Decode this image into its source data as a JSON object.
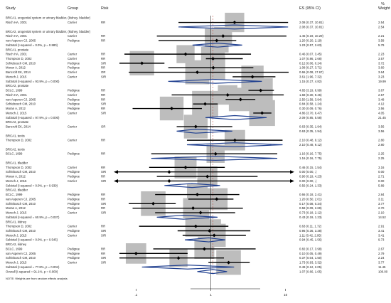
{
  "chart_data": {
    "type": "forest",
    "title": "",
    "columns": {
      "study": "Study",
      "group": "Group",
      "risk": "Risk",
      "es": "ES (95% CI)",
      "weight_line1": "%",
      "weight_line2": "Weight"
    },
    "xlabel": "",
    "log_scale": true,
    "axis_ticks": [
      {
        "value": 0.1,
        "label": ".1"
      },
      {
        "value": 1,
        "label": "1"
      },
      {
        "value": 10,
        "label": "10"
      }
    ],
    "xlim": [
      0.06,
      11
    ],
    "reference_line": 1,
    "footnote": "NOTE: Weights are from random effects analysis",
    "rows": [
      {
        "kind": "header",
        "label": "BRCA1, urogenital system or urinary bladder, (kidney, bladder)"
      },
      {
        "kind": "study",
        "label": "Risch HA, 2001",
        "group": "Carrier",
        "risk": "RR",
        "es": 2.08,
        "lo": 0.37,
        "hi": 10.81,
        "ci": "2.08 (0.37, 10.81)",
        "weight": "2.54"
      },
      {
        "kind": "subtotal",
        "label": "",
        "es": 2.08,
        "lo": 0.37,
        "hi": 10.81,
        "ci": "2.08 (0.37, 10.81)",
        "weight": "2.54"
      },
      {
        "kind": "header",
        "label": "BRCA2, urogenital system or urinary bladder, (kidney, bladder)"
      },
      {
        "kind": "study",
        "label": "Risch HA, 2001",
        "group": "Carrier",
        "risk": "RR",
        "es": 1.46,
        "lo": 0.19,
        "hi": 10.29,
        "ci": "1.46 (0.19, 10.29)",
        "weight": "2.21"
      },
      {
        "kind": "study",
        "label": "van Asperen CJ, 2005",
        "group": "Pedigree",
        "risk": "RR",
        "es": 1.2,
        "lo": 0.2,
        "hi": 2.19,
        "ci": "1.20 (0.20, 2.19)",
        "weight": "3.58"
      },
      {
        "kind": "subtotal",
        "label": "Subtotal (I-squared = 0.0%, p = 0.880)",
        "es": 1.23,
        "lo": 0.57,
        "hi": 2.63,
        "ci": "1.23 (0.57, 2.63)",
        "weight": "5.79"
      },
      {
        "kind": "header",
        "label": "BRCA1, prostate"
      },
      {
        "kind": "study",
        "label": "Risch HA, 2001",
        "group": "Carrier",
        "risk": "RR",
        "es": 0.46,
        "lo": 0.07,
        "hi": 3.45,
        "ci": "0.46 (0.07, 3.45)",
        "weight": "2.23"
      },
      {
        "kind": "study",
        "label": "Thompson D, 2002",
        "group": "Carrier",
        "risk": "RR",
        "es": 1.07,
        "lo": 0.86,
        "hi": 2.68,
        "ci": "1.07 (0.86, 2.68)",
        "weight": "3.57"
      },
      {
        "kind": "study",
        "label": "Schlebusch CM, 2010",
        "group": "Pedigree",
        "risk": "SIR",
        "es": 0.12,
        "lo": 0.06,
        "hi": 0.24,
        "ci": "0.12 (0.06, 0.24)",
        "weight": "3.72"
      },
      {
        "kind": "study",
        "label": "Moran A, 2012",
        "group": "Pedigree",
        "risk": "RR",
        "es": 1.08,
        "lo": 0.27,
        "hi": 3.71,
        "ci": "1.08 (0.27, 3.71)",
        "weight": "3.60"
      },
      {
        "kind": "study",
        "label": "Bancroft EK, 2014",
        "group": "Carrier",
        "risk": "OR",
        "es": 0.66,
        "lo": 0.08,
        "hi": 17.67,
        "ci": "0.66 (0.08, 17.67)",
        "weight": "3.64"
      },
      {
        "kind": "study",
        "label": "Mersch J, 2015",
        "group": "Carrier",
        "risk": "SIR",
        "es": 3.61,
        "lo": 1.96,
        "hi": 7.32,
        "ci": "3.61 (1.96, 7.32)",
        "weight": "3.23"
      },
      {
        "kind": "subtotal",
        "label": "Subtotal (I-squared = 93.9%, p = 0.000)",
        "es": 1.15,
        "lo": 0.27,
        "hi": 4.82,
        "ci": "1.15 (0.27, 4.82)",
        "weight": "19.99"
      },
      {
        "kind": "header",
        "label": "BRCA2, prostate"
      },
      {
        "kind": "study",
        "label": "BCLC, 1999",
        "group": "Pedigree",
        "risk": "RR",
        "es": 4.65,
        "lo": 3.19,
        "hi": 6.99,
        "ci": "4.65 (3.19, 6.99)",
        "weight": "3.67"
      },
      {
        "kind": "study",
        "label": "Risch HA, 2001",
        "group": "Carrier",
        "risk": "RR",
        "es": 1.68,
        "lo": 0.3,
        "hi": 9.46,
        "ci": "1.68 (0.30, 9.46)",
        "weight": "2.57"
      },
      {
        "kind": "study",
        "label": "van Asperen CJ, 2005",
        "group": "Pedigree",
        "risk": "RR",
        "es": 2.5,
        "lo": 1.58,
        "hi": 3.94,
        "ci": "2.50 (1.58, 3.94)",
        "weight": "3.48"
      },
      {
        "kind": "study",
        "label": "Schlebusch CM, 2010",
        "group": "Pedigree",
        "risk": "SIR",
        "es": 0.84,
        "lo": 0.58,
        "hi": 1.24,
        "ci": "0.84 (0.58, 1.24)",
        "weight": "4.12"
      },
      {
        "kind": "study",
        "label": "Moran A, 2012",
        "group": "Pedigree",
        "risk": "RR",
        "es": 0.3,
        "lo": 0.09,
        "hi": 0.76,
        "ci": "0.30 (0.09, 0.76)",
        "weight": "3.56"
      },
      {
        "kind": "study",
        "label": "Mersch J, 2015",
        "group": "Carrier",
        "risk": "SIR",
        "es": 4.86,
        "lo": 3.7,
        "hi": 6.47,
        "ci": "4.86 (3.70, 6.47)",
        "weight": "4.05"
      },
      {
        "kind": "subtotal",
        "label": "Subtotal (I-squared = 97.9%, p = 0.000)",
        "es": 2.09,
        "lo": 0.85,
        "hi": 5.58,
        "ci": "2.09 (0.85, 5.58)",
        "weight": "21.45"
      },
      {
        "kind": "header",
        "label": "BRCA2, prostate"
      },
      {
        "kind": "study",
        "label": "Bancroft EK, 2014",
        "group": "Carrier",
        "risk": "OR",
        "es": 0.63,
        "lo": 0.35,
        "hi": 1.94,
        "ci": "0.63 (0.35, 1.94)",
        "weight": "3.56"
      },
      {
        "kind": "subtotal",
        "label": "",
        "es": 0.63,
        "lo": 0.35,
        "hi": 1.94,
        "ci": "0.63 (0.35, 1.94)",
        "weight": "3.56"
      },
      {
        "kind": "header",
        "label": "BRCA1, testis"
      },
      {
        "kind": "study",
        "label": "Thompson D, 2002",
        "group": "Carrier",
        "risk": "RR",
        "es": 2.1,
        "lo": 0.48,
        "hi": 9.12,
        "ci": "2.10 (0.48, 9.12)",
        "weight": "2.80"
      },
      {
        "kind": "subtotal",
        "label": "",
        "es": 2.1,
        "lo": 0.48,
        "hi": 9.12,
        "ci": "2.10 (0.48, 9.12)",
        "weight": "2.80"
      },
      {
        "kind": "header",
        "label": "BRCA2, testis"
      },
      {
        "kind": "study",
        "label": "BCLC, 1999",
        "group": "Pedigree",
        "risk": "RR",
        "es": 1.16,
        "lo": 0.16,
        "hi": 7.75,
        "ci": "1.16 (0.16, 7.75)",
        "weight": "2.25"
      },
      {
        "kind": "subtotal",
        "label": "",
        "es": 1.16,
        "lo": 0.16,
        "hi": 7.75,
        "ci": "1.16 (0.16, 7.75)",
        "weight": "2.25"
      },
      {
        "kind": "header",
        "label": "BRCA1, bladder"
      },
      {
        "kind": "study",
        "label": "Thompson D, 2002",
        "group": "Carrier",
        "risk": "RR",
        "es": 0.46,
        "lo": 0.15,
        "hi": 1.54,
        "ci": "0.46 (0.15, 1.54)",
        "weight": "3.16"
      },
      {
        "kind": "study",
        "label": "Schlebusch CM, 2010",
        "group": "Pedigree",
        "risk": "SIR",
        "es": 0.0,
        "lo": 0.0,
        "hi": 0.0,
        "ci": "0.00 (0.00, .)",
        "weight": "0.00",
        "arrow_both": true
      },
      {
        "kind": "study",
        "label": "Moran A, 2012",
        "group": "Pedigree",
        "risk": "RR",
        "es": 0.9,
        "lo": 0.19,
        "hi": 4.23,
        "ci": "0.90 (0.19, 4.23)",
        "weight": "2.71"
      },
      {
        "kind": "study",
        "label": "Mersch J, 2015",
        "group": "Carrier",
        "risk": "SIR",
        "es": 0.0,
        "lo": 0.0,
        "hi": 0.0,
        "ci": "0.00 (0.00, .)",
        "weight": "0.00",
        "arrow_both": true
      },
      {
        "kind": "subtotal",
        "label": "Subtotal (I-squared = 0.0%, p = 0.939)",
        "es": 0.56,
        "lo": 0.24,
        "hi": 1.33,
        "ci": "0.56 (0.24, 1.33)",
        "weight": "5.89"
      },
      {
        "kind": "header",
        "label": "BRCA2, bladder"
      },
      {
        "kind": "study",
        "label": "BCLC, 1999",
        "group": "Pedigree",
        "risk": "RR",
        "es": 0.66,
        "lo": 0.18,
        "hi": 2.41,
        "ci": "0.66 (0.18, 2.41)",
        "weight": "2.84"
      },
      {
        "kind": "study",
        "label": "van Asperen CJ, 2005",
        "group": "Pedigree",
        "risk": "RR",
        "es": 1.2,
        "lo": 0.5,
        "hi": 2.01,
        "ci": "1.20 (0.50, 2.01)",
        "weight": "3.11"
      },
      {
        "kind": "study",
        "label": "Schlebusch CM, 2010",
        "group": "Pedigree",
        "risk": "SIR",
        "es": 0.17,
        "lo": 0.08,
        "hi": 0.34,
        "ci": "0.17 (0.08, 0.34)",
        "weight": "3.77"
      },
      {
        "kind": "study",
        "label": "Moran A, 2012",
        "group": "Pedigree",
        "risk": "RR",
        "es": 0.58,
        "lo": 0.09,
        "hi": 2.69,
        "ci": "0.58 (0.09, 2.69)",
        "weight": "2.70"
      },
      {
        "kind": "study",
        "label": "Mersch J, 2015",
        "group": "Carrier",
        "risk": "SIR",
        "es": 0.73,
        "lo": 0.18,
        "hi": 2.12,
        "ci": "0.73 (0.18, 2.12)",
        "weight": "2.10"
      },
      {
        "kind": "subtotal",
        "label": "Subtotal (I-squared = 60.9%, p = 0.037)",
        "es": 0.43,
        "lo": 0.19,
        "hi": 1.23,
        "ci": "0.43 (0.19, 1.23)",
        "weight": "14.52"
      },
      {
        "kind": "header",
        "label": "BRCA1, kidney"
      },
      {
        "kind": "study",
        "label": "Thompson D, 2002",
        "group": "Carrier",
        "risk": "RR",
        "es": 0.63,
        "lo": 0.11,
        "hi": 1.72,
        "ci": "0.63 (0.11, 1.72)",
        "weight": "2.91"
      },
      {
        "kind": "study",
        "label": "Schlebusch CM, 2010",
        "group": "Pedigree",
        "risk": "SIR",
        "es": 0.96,
        "lo": 0.36,
        "hi": 3.38,
        "ci": "0.96 (0.36, 3.38)",
        "weight": "3.41"
      },
      {
        "kind": "study",
        "label": "Mersch J, 2015",
        "group": "Carrier",
        "risk": "SIR",
        "es": 1.11,
        "lo": 0.42,
        "hi": 2.95,
        "ci": "1.11 (0.42, 2.95)",
        "weight": "3.41"
      },
      {
        "kind": "subtotal",
        "label": "Subtotal (I-squared = 0.0%, p = 0.545)",
        "es": 0.94,
        "lo": 0.45,
        "hi": 1.56,
        "ci": "0.94 (0.45, 1.56)",
        "weight": "9.73"
      },
      {
        "kind": "header",
        "label": "BRCA2, kidney"
      },
      {
        "kind": "study",
        "label": "BCLC, 1999",
        "group": "Pedigree",
        "risk": "RR",
        "es": 0.82,
        "lo": 0.17,
        "hi": 3.98,
        "ci": "0.82 (0.17, 3.98)",
        "weight": "2.67"
      },
      {
        "kind": "study",
        "label": "van Asperen CJ, 2005",
        "group": "Pedigree",
        "risk": "RR",
        "es": 0.1,
        "lo": 0.05,
        "hi": 0.49,
        "ci": "0.10 (0.05, 0.49)",
        "weight": "2.79"
      },
      {
        "kind": "study",
        "label": "Schlebusch CM, 2010",
        "group": "Pedigree",
        "risk": "SIR",
        "es": 0.37,
        "lo": 0.04,
        "hi": 1.5,
        "ci": "0.37 (0.04, 1.50)",
        "weight": "2.24"
      },
      {
        "kind": "study",
        "label": "Mersch J, 2015",
        "group": "Carrier",
        "risk": "SIR",
        "es": 1.73,
        "lo": 0.93,
        "hi": 3.32,
        "ci": "1.73 (0.93, 3.32)",
        "weight": "3.77"
      },
      {
        "kind": "subtotal",
        "label": "Subtotal (I-squared = 77.8%, p = 0.004)",
        "es": 0.49,
        "lo": 0.12,
        "hi": 2.05,
        "ci": "0.49 (0.12, 2.05)",
        "weight": "11.45"
      },
      {
        "kind": "overall",
        "label": "Overall (I-squared = 91.1%, p = 0.000)",
        "es": 1.07,
        "lo": 0.66,
        "hi": 1.65,
        "ci": "1.07 (0.66, 1.65)",
        "weight": "100.00"
      }
    ]
  }
}
